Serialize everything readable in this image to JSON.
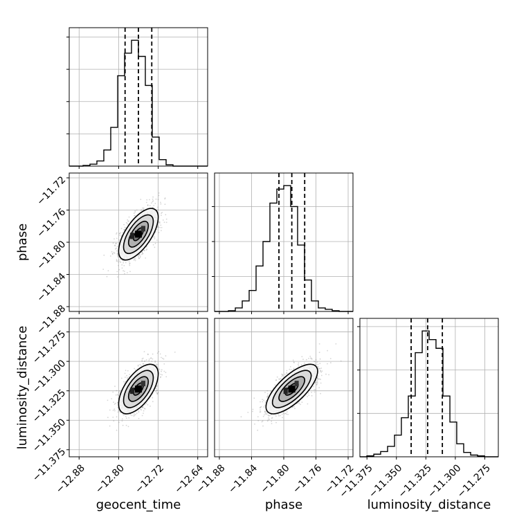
{
  "chart_data": {
    "type": "corner",
    "parameters": [
      {
        "name": "geocent_time",
        "range": [
          -12.9,
          -12.62
        ],
        "ticks": [
          -12.88,
          -12.8,
          -12.72,
          -12.64
        ],
        "tick_labels": [
          "−12.88",
          "−12.80",
          "−12.72",
          "−12.64"
        ],
        "quantiles": [
          -12.787,
          -12.76,
          -12.733
        ],
        "hist_edges": [
          -12.9,
          -12.886,
          -12.872,
          -12.858,
          -12.844,
          -12.83,
          -12.816,
          -12.802,
          -12.788,
          -12.774,
          -12.76,
          -12.746,
          -12.732,
          -12.718,
          -12.704,
          -12.69,
          -12.676,
          -12.662,
          -12.648,
          -12.634,
          -12.62
        ],
        "hist_counts": [
          0,
          0,
          1,
          3,
          8,
          25,
          60,
          140,
          175,
          195,
          170,
          125,
          45,
          10,
          2,
          0,
          0,
          0,
          0,
          0
        ]
      },
      {
        "name": "phase",
        "range": [
          -11.886,
          -11.714
        ],
        "ticks": [
          -11.88,
          -11.84,
          -11.8,
          -11.76,
          -11.72
        ],
        "tick_labels": [
          "−11.88",
          "−11.84",
          "−11.80",
          "−11.76",
          "−11.72"
        ],
        "quantiles": [
          -11.806,
          -11.79,
          -11.774
        ],
        "hist_edges": [
          -11.886,
          -11.8774,
          -11.8688,
          -11.8602,
          -11.8516,
          -11.843,
          -11.8344,
          -11.8258,
          -11.8172,
          -11.8086,
          -11.8,
          -11.7914,
          -11.7828,
          -11.7742,
          -11.7656,
          -11.757,
          -11.7484,
          -11.7398,
          -11.7312,
          -11.7226,
          -11.714
        ],
        "hist_counts": [
          0,
          0,
          1,
          5,
          15,
          30,
          65,
          100,
          155,
          175,
          180,
          150,
          95,
          45,
          15,
          5,
          3,
          1,
          0,
          0
        ]
      },
      {
        "name": "luminosity_distance",
        "range": [
          -11.381,
          -11.2635
        ],
        "ticks": [
          -11.375,
          -11.35,
          -11.325,
          -11.3,
          -11.275
        ],
        "tick_labels": [
          "−11.375",
          "−11.350",
          "−11.325",
          "−11.300",
          "−11.275"
        ],
        "quantiles": [
          -11.3375,
          -11.3235,
          -11.311
        ],
        "hist_edges": [
          -11.381,
          -11.3751,
          -11.3692,
          -11.3634,
          -11.3575,
          -11.3516,
          -11.3458,
          -11.3399,
          -11.334,
          -11.3281,
          -11.3222,
          -11.3164,
          -11.3105,
          -11.3046,
          -11.2988,
          -11.2929,
          -11.287,
          -11.2811,
          -11.2752,
          -11.2694,
          -11.2635
        ],
        "hist_counts": [
          0,
          1,
          3,
          6,
          12,
          25,
          45,
          70,
          120,
          145,
          135,
          125,
          70,
          40,
          15,
          5,
          2,
          1,
          0,
          0
        ]
      }
    ],
    "correlations": [
      {
        "x": "geocent_time",
        "y": "phase",
        "mean": [
          -12.76,
          -11.79
        ],
        "std": [
          0.02,
          0.016
        ],
        "rho": 0.65
      },
      {
        "x": "geocent_time",
        "y": "luminosity_distance",
        "mean": [
          -12.76,
          -11.3235
        ],
        "std": [
          0.02,
          0.0105
        ],
        "rho": 0.6
      },
      {
        "x": "phase",
        "y": "luminosity_distance",
        "mean": [
          -11.79,
          -11.3235
        ],
        "std": [
          0.016,
          0.0105
        ],
        "rho": 0.72
      }
    ],
    "grid": true
  }
}
